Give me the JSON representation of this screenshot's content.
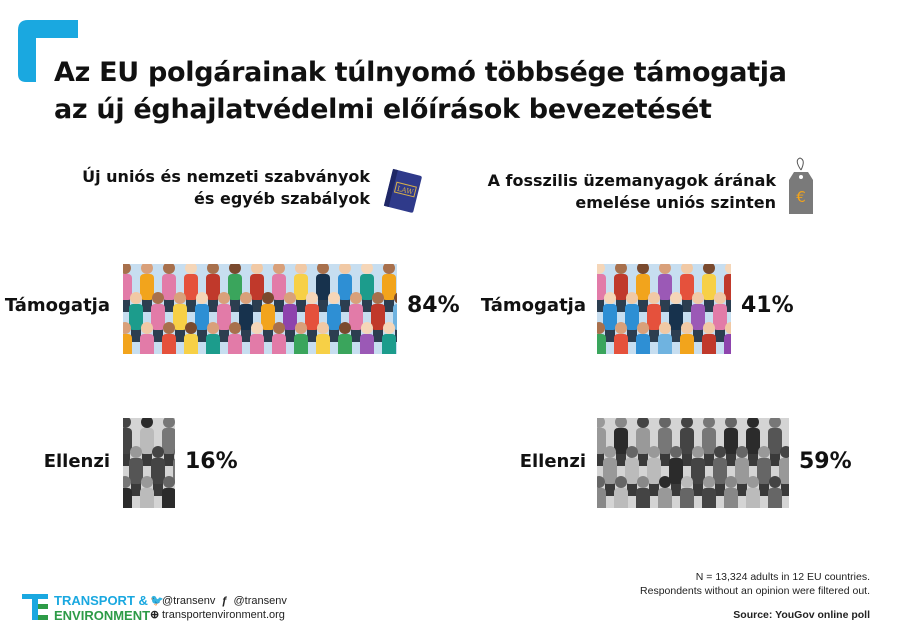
{
  "title_line1": "Az EU polgárainak túlnyomó többsége támogatja",
  "title_line2": "az új éghajlatvédelmi előírások bevezetését",
  "colors": {
    "accent": "#1aa8e0",
    "green": "#2d9b47",
    "book": "#2f3a8a",
    "tag": "#777777"
  },
  "chart_data": [
    {
      "type": "bar",
      "title": "Új uniós és nemzeti szabványok és egyéb szabályok",
      "title_line1": "Új uniós és nemzeti szabványok",
      "title_line2": "és egyéb szabályok",
      "icon": "law-book-icon",
      "icon_text": "LAW",
      "categories": [
        "Támogatja",
        "Ellenzi"
      ],
      "values": [
        84,
        16
      ],
      "labels": [
        "84%",
        "16%"
      ],
      "unit": "%"
    },
    {
      "type": "bar",
      "title": "A fosszilis üzemanyagok árának emelése uniós szinten",
      "title_line1": "A fosszilis üzemanyagok árának",
      "title_line2": "emelése uniós szinten",
      "icon": "euro-price-tag-icon",
      "icon_text": "€",
      "categories": [
        "Támogatja",
        "Ellenzi"
      ],
      "values": [
        41,
        59
      ],
      "labels": [
        "41%",
        "59%"
      ],
      "unit": "%"
    }
  ],
  "footer": {
    "logo_line1": "TRANSPORT &",
    "logo_line2": "ENVIRONMENT",
    "twitter": "@transenv",
    "facebook": "@transenv",
    "website": "transportenvironment.org",
    "note_line1": "N = 13,324 adults in 12 EU countries.",
    "note_line2": "Respondents without an opinion were filtered out.",
    "source": "Source: YouGov online poll"
  }
}
